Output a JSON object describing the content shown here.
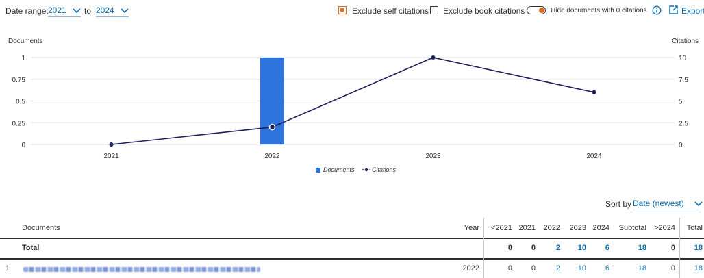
{
  "filters": {
    "date_range_label": "Date range:",
    "from_year": "2021",
    "to_label": "to",
    "to_year": "2024",
    "exclude_self_label": "Exclude self citations",
    "exclude_self_checked": true,
    "exclude_book_label": "Exclude book citations",
    "exclude_book_checked": false,
    "hide_zero_label": "Hide documents with 0 citations",
    "hide_zero_on": true,
    "export_label": "Export",
    "accent_color": "#e06b1a",
    "link_color": "#0a6eb3"
  },
  "chart_data": {
    "type": "bar",
    "categories": [
      "2021",
      "2022",
      "2023",
      "2024"
    ],
    "series": [
      {
        "name": "Documents",
        "kind": "bar",
        "axis": "left",
        "values": [
          0,
          1,
          0,
          0
        ],
        "color": "#2f74dc"
      },
      {
        "name": "Citations",
        "kind": "line",
        "axis": "right",
        "values": [
          0,
          2,
          10,
          6
        ],
        "color": "#1b1f5c"
      }
    ],
    "ylabel_left": "Documents",
    "ylabel_right": "Citations",
    "ylim_left": [
      0,
      1
    ],
    "ylim_right": [
      0,
      10
    ],
    "yticks_left": [
      "0",
      "0.25",
      "0.5",
      "0.75",
      "1"
    ],
    "yticks_right": [
      "0",
      "2.5",
      "5",
      "7.5",
      "10"
    ],
    "grid": true,
    "legend_position": "bottom-center"
  },
  "sort": {
    "label": "Sort by",
    "value": "Date (newest)"
  },
  "table": {
    "columns": [
      "Documents",
      "Year",
      "<2021",
      "2021",
      "2022",
      "2023",
      "2024",
      "Subtotal",
      ">2024",
      "Total"
    ],
    "total_row": {
      "label": "Total",
      "values": [
        "0",
        "0",
        "2",
        "10",
        "6",
        "18",
        "0",
        "18"
      ]
    },
    "rows": [
      {
        "index": "1",
        "year": "2022",
        "values": [
          "0",
          "0",
          "2",
          "10",
          "6",
          "18",
          "0",
          "18"
        ]
      }
    ]
  }
}
